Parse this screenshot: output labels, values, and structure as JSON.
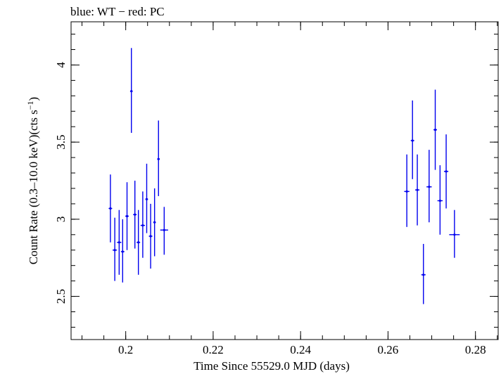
{
  "chart_data": {
    "type": "scatter",
    "title": "blue: WT − red: PC",
    "xlabel": "Time Since 55529.0 MJD (days)",
    "ylabel_main": "Count Rate (0.3–10.0 keV)(cts s",
    "ylabel_sup": "−1",
    "ylabel_close": ")",
    "xlim": [
      0.1875,
      0.2852
    ],
    "ylim": [
      2.22,
      4.28
    ],
    "xticks": [
      {
        "value": 0.2,
        "label": "0.2"
      },
      {
        "value": 0.22,
        "label": "0.22"
      },
      {
        "value": 0.24,
        "label": "0.24"
      },
      {
        "value": 0.26,
        "label": "0.26"
      },
      {
        "value": 0.28,
        "label": "0.28"
      }
    ],
    "yticks": [
      {
        "value": 2.5,
        "label": "2.5"
      },
      {
        "value": 3,
        "label": "3"
      },
      {
        "value": 3.5,
        "label": "3.5"
      },
      {
        "value": 4,
        "label": "4"
      }
    ],
    "x_minor_step": 0.005,
    "y_minor_step": 0.1,
    "grid": false,
    "series": [
      {
        "color": "#0000ee",
        "points": [
          {
            "x": 0.1965,
            "y": 3.07,
            "xerr": 0.0004,
            "ylo": 2.85,
            "yhi": 3.29
          },
          {
            "x": 0.1975,
            "y": 2.8,
            "xerr": 0.0005,
            "ylo": 2.6,
            "yhi": 3.01
          },
          {
            "x": 0.1985,
            "y": 2.85,
            "xerr": 0.0005,
            "ylo": 2.64,
            "yhi": 3.06
          },
          {
            "x": 0.1993,
            "y": 2.79,
            "xerr": 0.0004,
            "ylo": 2.59,
            "yhi": 3.0
          },
          {
            "x": 0.2003,
            "y": 3.02,
            "xerr": 0.0004,
            "ylo": 2.8,
            "yhi": 3.24
          },
          {
            "x": 0.2013,
            "y": 3.83,
            "xerr": 0.0003,
            "ylo": 3.56,
            "yhi": 4.11
          },
          {
            "x": 0.2021,
            "y": 3.03,
            "xerr": 0.0004,
            "ylo": 2.81,
            "yhi": 3.25
          },
          {
            "x": 0.2029,
            "y": 2.85,
            "xerr": 0.0004,
            "ylo": 2.64,
            "yhi": 3.06
          },
          {
            "x": 0.2039,
            "y": 2.96,
            "xerr": 0.0005,
            "ylo": 2.75,
            "yhi": 3.18
          },
          {
            "x": 0.2048,
            "y": 3.13,
            "xerr": 0.0003,
            "ylo": 2.91,
            "yhi": 3.36
          },
          {
            "x": 0.2057,
            "y": 2.89,
            "xerr": 0.0004,
            "ylo": 2.68,
            "yhi": 3.1
          },
          {
            "x": 0.2066,
            "y": 2.98,
            "xerr": 0.0003,
            "ylo": 2.76,
            "yhi": 3.2
          },
          {
            "x": 0.2075,
            "y": 3.39,
            "xerr": 0.0003,
            "ylo": 3.15,
            "yhi": 3.64
          },
          {
            "x": 0.2088,
            "y": 2.93,
            "xerr": 0.0009,
            "ylo": 2.77,
            "yhi": 3.08
          },
          {
            "x": 0.2643,
            "y": 3.18,
            "xerr": 0.0006,
            "ylo": 2.95,
            "yhi": 3.42
          },
          {
            "x": 0.2656,
            "y": 3.51,
            "xerr": 0.0004,
            "ylo": 3.26,
            "yhi": 3.77
          },
          {
            "x": 0.2667,
            "y": 3.19,
            "xerr": 0.0005,
            "ylo": 2.96,
            "yhi": 3.42
          },
          {
            "x": 0.2681,
            "y": 2.64,
            "xerr": 0.0005,
            "ylo": 2.45,
            "yhi": 2.84
          },
          {
            "x": 0.2694,
            "y": 3.21,
            "xerr": 0.0006,
            "ylo": 2.98,
            "yhi": 3.45
          },
          {
            "x": 0.2708,
            "y": 3.58,
            "xerr": 0.0004,
            "ylo": 3.32,
            "yhi": 3.84
          },
          {
            "x": 0.2719,
            "y": 3.12,
            "xerr": 0.0006,
            "ylo": 2.9,
            "yhi": 3.35
          },
          {
            "x": 0.2733,
            "y": 3.31,
            "xerr": 0.0005,
            "ylo": 3.07,
            "yhi": 3.55
          },
          {
            "x": 0.2752,
            "y": 2.9,
            "xerr": 0.0012,
            "ylo": 2.75,
            "yhi": 3.06
          }
        ]
      }
    ]
  }
}
